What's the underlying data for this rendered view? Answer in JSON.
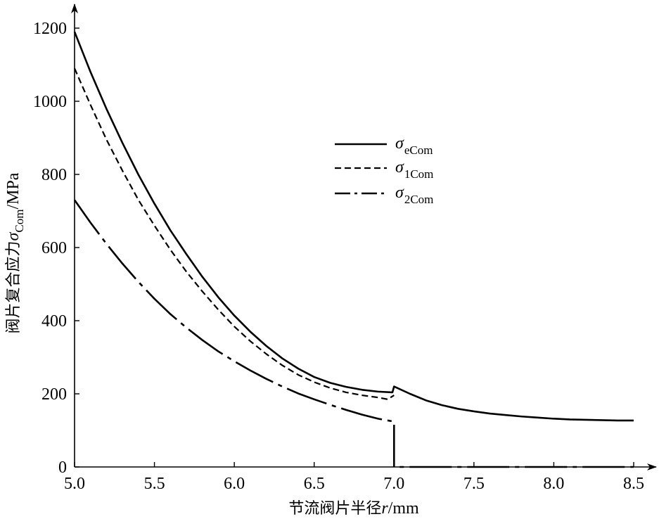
{
  "chart_data": {
    "type": "line",
    "xlabel": {
      "prefix": "节流阀片半径",
      "var": "r",
      "suffix": "/mm"
    },
    "ylabel": {
      "prefix": "阀片复合应力",
      "sym": "σ",
      "sub": "Com",
      "suffix": "/MPa"
    },
    "xlim": [
      5.0,
      8.5
    ],
    "ylim": [
      0,
      1200
    ],
    "xticks": [
      5.0,
      5.5,
      6.0,
      6.5,
      7.0,
      7.5,
      8.0,
      8.5
    ],
    "xtick_labels": [
      "5.0",
      "5.5",
      "6.0",
      "6.5",
      "7.0",
      "7.5",
      "8.0",
      "8.5"
    ],
    "yticks": [
      0,
      200,
      400,
      600,
      800,
      1000,
      1200
    ],
    "ytick_labels": [
      "0",
      "200",
      "400",
      "600",
      "800",
      "1000",
      "1200"
    ],
    "grid": false,
    "legend_position": "top-right",
    "series": [
      {
        "name": "σeCom",
        "sym": "σ",
        "sub": "eCom",
        "style": "solid",
        "x": [
          5.0,
          5.1,
          5.2,
          5.3,
          5.4,
          5.5,
          5.6,
          5.7,
          5.8,
          5.9,
          6.0,
          6.1,
          6.2,
          6.3,
          6.4,
          6.5,
          6.6,
          6.7,
          6.8,
          6.9,
          6.99,
          7.0,
          7.1,
          7.2,
          7.3,
          7.4,
          7.5,
          7.6,
          7.7,
          7.8,
          7.9,
          8.0,
          8.1,
          8.2,
          8.3,
          8.4,
          8.5
        ],
        "y": [
          1190,
          1080,
          979,
          886,
          799,
          720,
          647,
          582,
          520,
          464,
          414,
          370,
          331,
          297,
          269,
          246,
          230,
          219,
          211,
          206,
          204,
          220,
          200,
          182,
          169,
          159,
          152,
          146,
          142,
          138,
          135,
          132,
          130,
          129,
          128,
          127,
          127
        ]
      },
      {
        "name": "σ1Com",
        "sym": "σ",
        "sub": "1Com",
        "style": "dashed",
        "x": [
          5.0,
          5.1,
          5.2,
          5.3,
          5.4,
          5.5,
          5.6,
          5.7,
          5.8,
          5.9,
          6.0,
          6.1,
          6.2,
          6.3,
          6.4,
          6.5,
          6.6,
          6.7,
          6.8,
          6.9,
          6.96,
          7.0
        ],
        "y": [
          1090,
          990,
          895,
          810,
          730,
          660,
          594,
          534,
          480,
          430,
          384,
          344,
          309,
          278,
          252,
          232,
          216,
          204,
          196,
          190,
          185,
          196
        ]
      },
      {
        "name": "σ2Com",
        "sym": "σ",
        "sub": "2Com",
        "style": "dashdot",
        "x": [
          5.0,
          5.1,
          5.2,
          5.3,
          5.4,
          5.5,
          5.6,
          5.7,
          5.8,
          5.9,
          6.0,
          6.1,
          6.2,
          6.3,
          6.4,
          6.5,
          6.6,
          6.7,
          6.8,
          6.9,
          7.0,
          7.0,
          7.0,
          8.5
        ],
        "y": [
          730,
          668,
          610,
          556,
          506,
          460,
          418,
          381,
          347,
          316,
          289,
          264,
          241,
          220,
          201,
          185,
          170,
          156,
          143,
          132,
          124,
          124,
          0,
          0
        ]
      }
    ]
  }
}
